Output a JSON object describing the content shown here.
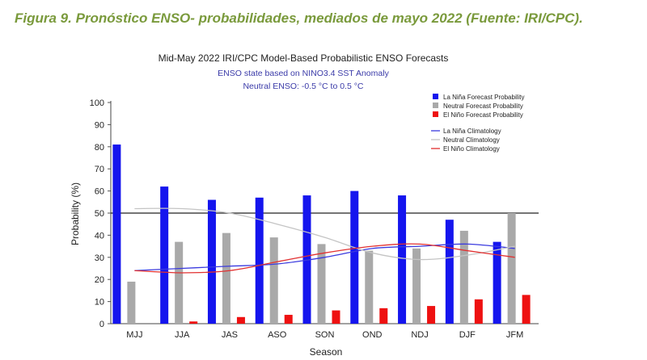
{
  "caption": "Figura 9. Pronóstico ENSO- probabilidades, mediados de mayo  2022 (Fuente: IRI/CPC).",
  "chart_data": {
    "type": "bar",
    "title": "Mid-May 2022 IRI/CPC Model-Based Probabilistic ENSO Forecasts",
    "subtitle_lines": [
      "ENSO state based on NINO3.4 SST Anomaly",
      "Neutral ENSO: -0.5 °C to 0.5 °C"
    ],
    "xlabel": "Season",
    "ylabel": "Probability (%)",
    "ylim": [
      0,
      100
    ],
    "yticks": [
      0,
      10,
      20,
      30,
      40,
      50,
      60,
      70,
      80,
      90,
      100
    ],
    "reference_line": 50,
    "categories": [
      "MJJ",
      "JJA",
      "JAS",
      "ASO",
      "SON",
      "OND",
      "NDJ",
      "DJF",
      "JFM"
    ],
    "series": [
      {
        "name": "La Niña Forecast Probability",
        "color": "#1515ee",
        "values": [
          81,
          62,
          56,
          57,
          58,
          60,
          58,
          47,
          37
        ]
      },
      {
        "name": "Neutral Forecast Probability",
        "color": "#a9a9a9",
        "values": [
          19,
          37,
          41,
          39,
          36,
          33,
          34,
          42,
          50
        ]
      },
      {
        "name": "El Niño Forecast Probability",
        "color": "#ee1111",
        "values": [
          0,
          1,
          3,
          4,
          6,
          7,
          8,
          11,
          13
        ]
      }
    ],
    "climatology": [
      {
        "name": "La Niña Climatology",
        "color": "#3a3adf",
        "values": [
          24,
          25,
          26,
          27,
          30,
          34,
          35,
          36,
          34
        ]
      },
      {
        "name": "Neutral Climatology",
        "color": "#c4c4c4",
        "values": [
          52,
          52,
          50,
          45,
          39,
          32,
          29,
          31,
          35
        ]
      },
      {
        "name": "El Niño Climatology",
        "color": "#e23030",
        "values": [
          24,
          23,
          24,
          28,
          32,
          35,
          36,
          33,
          30
        ]
      }
    ],
    "legend_position": "top-right",
    "grid": false
  }
}
